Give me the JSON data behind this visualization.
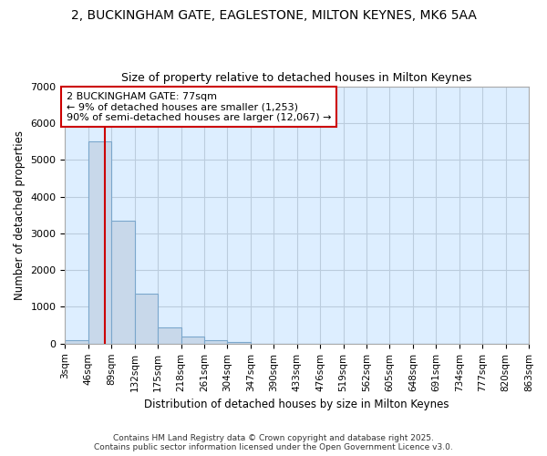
{
  "title_line1": "2, BUCKINGHAM GATE, EAGLESTONE, MILTON KEYNES, MK6 5AA",
  "title_line2": "Size of property relative to detached houses in Milton Keynes",
  "xlabel": "Distribution of detached houses by size in Milton Keynes",
  "ylabel": "Number of detached properties",
  "annotation_line1": "2 BUCKINGHAM GATE: 77sqm",
  "annotation_line2": "← 9% of detached houses are smaller (1,253)",
  "annotation_line3": "90% of semi-detached houses are larger (12,067) →",
  "property_size": 77,
  "bin_edges": [
    3,
    46,
    89,
    132,
    175,
    218,
    261,
    304,
    347,
    390,
    433,
    476,
    519,
    562,
    605,
    648,
    691,
    734,
    777,
    820,
    863
  ],
  "bin_counts": [
    100,
    5500,
    3350,
    1350,
    450,
    200,
    100,
    50,
    0,
    0,
    0,
    0,
    0,
    0,
    0,
    0,
    0,
    0,
    0,
    0
  ],
  "bar_color": "#c8d8ea",
  "bar_edge_color": "#7ba7cc",
  "vline_color": "#cc0000",
  "annotation_box_color": "#cc0000",
  "plot_bg_color": "#ddeeff",
  "background_color": "#ffffff",
  "grid_color": "#bbccdd",
  "ylim": [
    0,
    7000
  ],
  "yticks": [
    0,
    1000,
    2000,
    3000,
    4000,
    5000,
    6000,
    7000
  ],
  "footer_line1": "Contains HM Land Registry data © Crown copyright and database right 2025.",
  "footer_line2": "Contains public sector information licensed under the Open Government Licence v3.0."
}
